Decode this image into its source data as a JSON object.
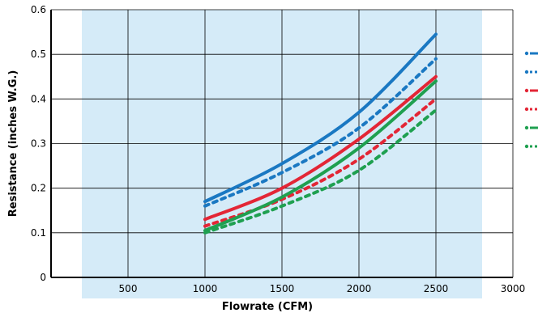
{
  "chart_data": {
    "type": "line",
    "title": "",
    "xlabel": "Flowrate (CFM)",
    "ylabel": "Resistance (inches W.G.)",
    "xlim": [
      0,
      3000
    ],
    "ylim": [
      0,
      0.6
    ],
    "x_ticks": [
      0,
      500,
      1000,
      1500,
      2000,
      2500,
      3000
    ],
    "x_tick_labels": [
      "",
      "500",
      "1000",
      "1500",
      "2000",
      "2500",
      "3000"
    ],
    "y_ticks": [
      0,
      0.1,
      0.2,
      0.3,
      0.4,
      0.5,
      0.6
    ],
    "y_tick_labels": [
      "0",
      "0.1",
      "0.2",
      "0.3",
      "0.4",
      "0.5",
      "0.6"
    ],
    "grid": true,
    "shaded_x_range": [
      200,
      2800
    ],
    "legend_placement": "right",
    "series": [
      {
        "color": "#1a78c2",
        "style": "solid",
        "x": [
          1000,
          1500,
          2000,
          2500
        ],
        "values": [
          0.17,
          0.255,
          0.37,
          0.545
        ]
      },
      {
        "color": "#1a78c2",
        "style": "dotted",
        "x": [
          1000,
          1500,
          2000,
          2500
        ],
        "values": [
          0.16,
          0.235,
          0.335,
          0.49
        ]
      },
      {
        "color": "#e32636",
        "style": "solid",
        "x": [
          1000,
          1500,
          2000,
          2500
        ],
        "values": [
          0.13,
          0.2,
          0.31,
          0.45
        ]
      },
      {
        "color": "#e32636",
        "style": "dotted",
        "x": [
          1000,
          1500,
          2000,
          2500
        ],
        "values": [
          0.115,
          0.175,
          0.265,
          0.4
        ]
      },
      {
        "color": "#1fa050",
        "style": "solid",
        "x": [
          1000,
          1500,
          2000,
          2500
        ],
        "values": [
          0.105,
          0.18,
          0.29,
          0.44
        ]
      },
      {
        "color": "#1fa050",
        "style": "dotted",
        "x": [
          1000,
          1500,
          2000,
          2500
        ],
        "values": [
          0.1,
          0.16,
          0.24,
          0.375
        ]
      }
    ]
  }
}
